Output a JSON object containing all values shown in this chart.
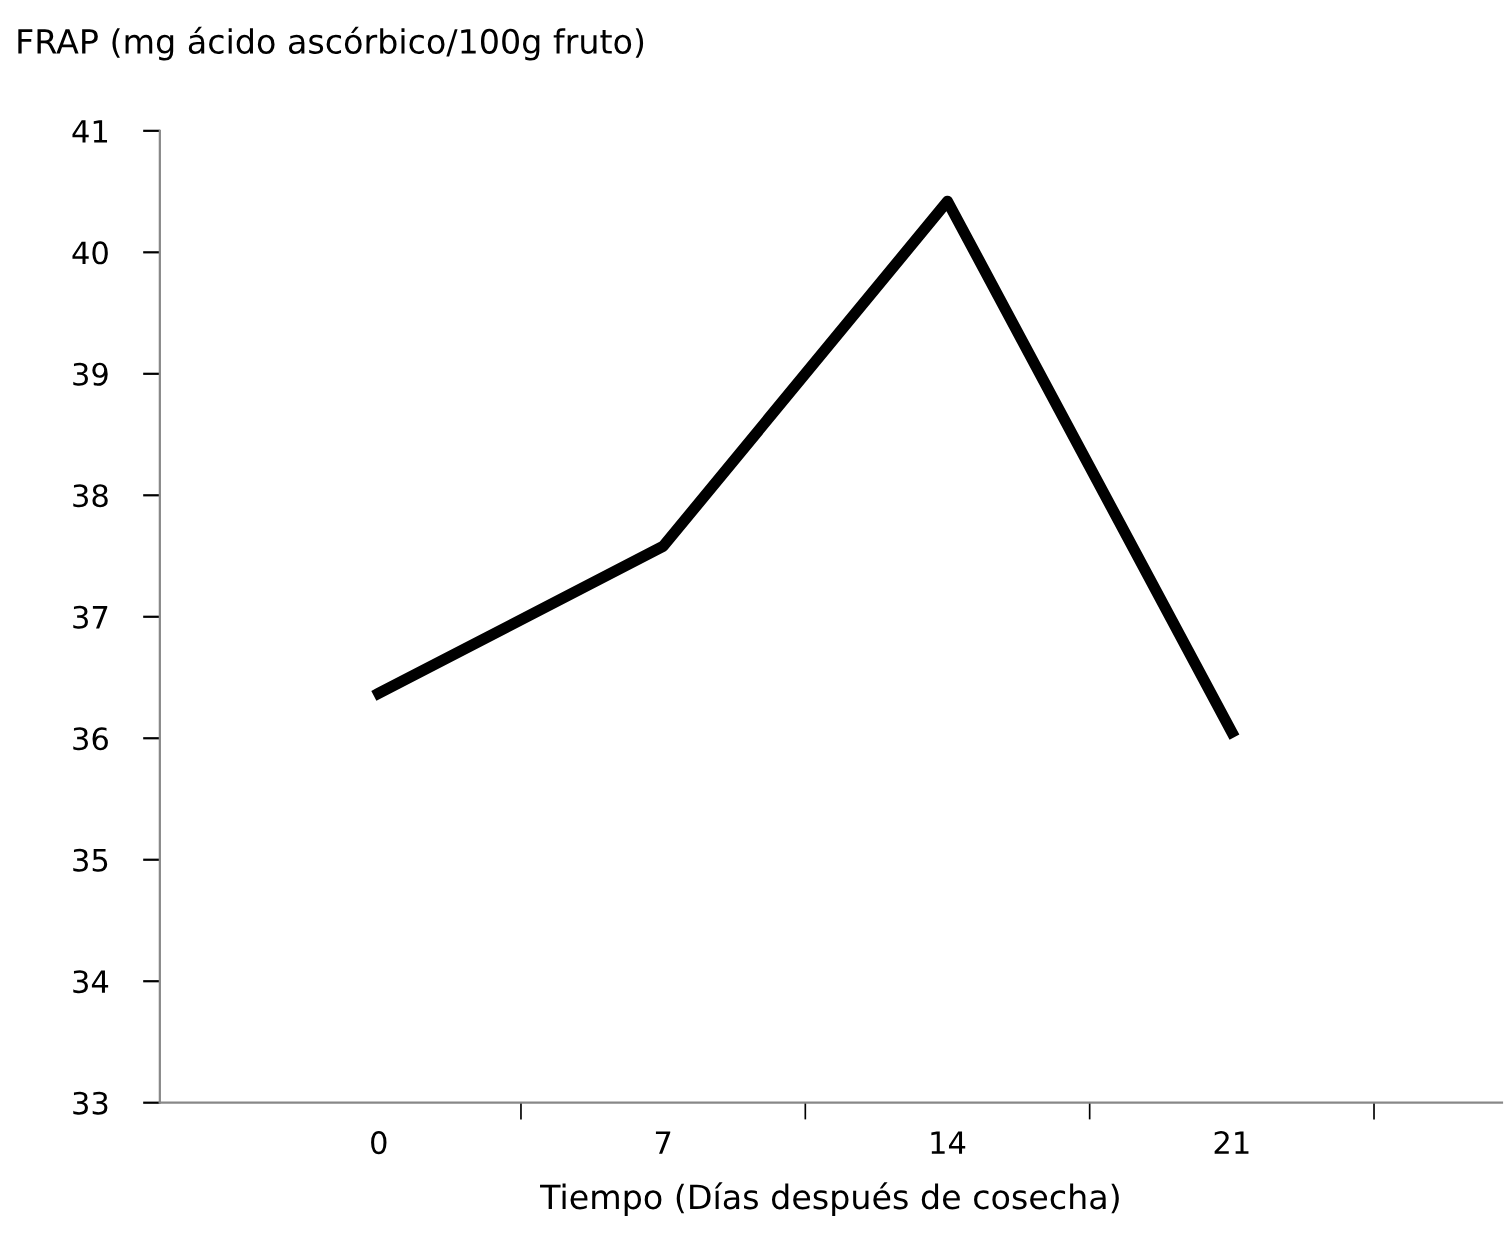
{
  "chart_data": {
    "type": "line",
    "ylabel": "FRAP (mg ácido ascórbico/100g fruto)",
    "xlabel": "Tiempo (Días después de cosecha)",
    "categories": [
      "0",
      "7",
      "14",
      "21"
    ],
    "series": [
      {
        "color": "#000000",
        "values": [
          36.37,
          37.58,
          40.42,
          36.05
        ]
      }
    ],
    "ylim": [
      33,
      41
    ],
    "yticks": [
      33,
      34,
      35,
      36,
      37,
      38,
      39,
      40,
      41
    ],
    "grid": false,
    "legend": false,
    "marker": "none",
    "line_style": "solid"
  }
}
